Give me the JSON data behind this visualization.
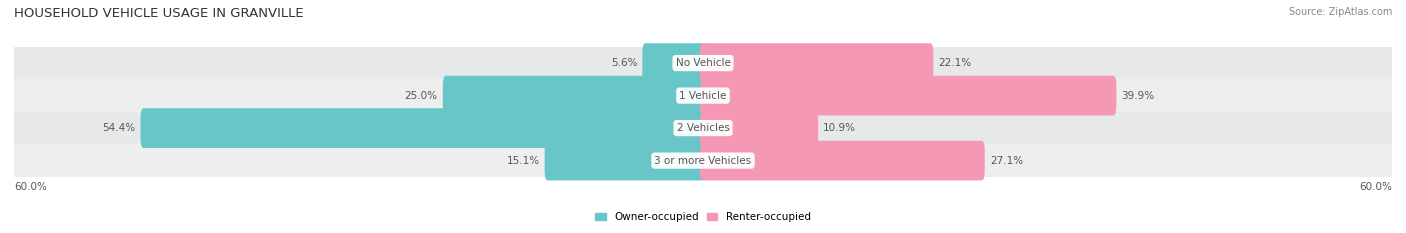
{
  "title": "HOUSEHOLD VEHICLE USAGE IN GRANVILLE",
  "source": "Source: ZipAtlas.com",
  "categories": [
    "3 or more Vehicles",
    "2 Vehicles",
    "1 Vehicle",
    "No Vehicle"
  ],
  "owner_values": [
    15.1,
    54.4,
    25.0,
    5.6
  ],
  "renter_values": [
    27.1,
    10.9,
    39.9,
    22.1
  ],
  "max_value": 60.0,
  "owner_color": "#68c5c8",
  "renter_color": "#f598b4",
  "owner_label": "Owner-occupied",
  "renter_label": "Renter-occupied",
  "bar_height": 0.62,
  "axis_label": "60.0%",
  "title_fontsize": 9.5,
  "label_fontsize": 7.5,
  "tick_fontsize": 7.5,
  "source_fontsize": 7,
  "row_colors": [
    "#ebebeb",
    "#e2e4e6",
    "#ebebeb",
    "#e2e4e6"
  ]
}
